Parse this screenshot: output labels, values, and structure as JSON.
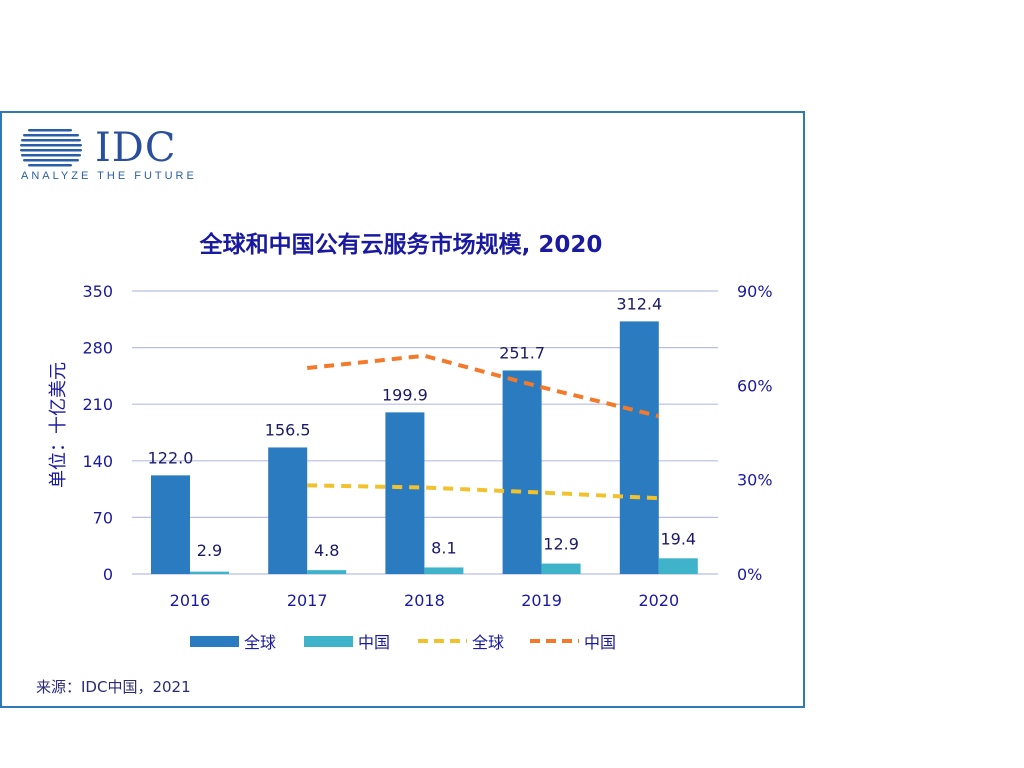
{
  "logo": {
    "name": "IDC",
    "tagline": "ANALYZE THE FUTURE",
    "colors": {
      "primary": "#2a4f9c",
      "accent": "#3a8fd6"
    }
  },
  "source": "来源：IDC中国，2021",
  "chart_data": {
    "type": "bar",
    "title": "全球和中国公有云服务市场规模, 2020",
    "ylabel": "单位：十亿美元",
    "categories": [
      "2016",
      "2017",
      "2018",
      "2019",
      "2020"
    ],
    "ylim": [
      0,
      350
    ],
    "yticks": [
      "0",
      "70",
      "140",
      "210",
      "280",
      "350"
    ],
    "y2lim": [
      0,
      90
    ],
    "y2ticks": [
      "0%",
      "30%",
      "60%",
      "90%"
    ],
    "series": [
      {
        "name": "全球",
        "kind": "bar",
        "color": "#2a7bbf",
        "values": [
          122.0,
          156.5,
          199.9,
          251.7,
          312.4
        ],
        "labels": [
          "122.0",
          "156.5",
          "199.9",
          "251.7",
          "312.4"
        ]
      },
      {
        "name": "中国",
        "kind": "bar",
        "color": "#3fb3c9",
        "values": [
          2.9,
          4.8,
          8.1,
          12.9,
          19.4
        ],
        "labels": [
          "2.9",
          "4.8",
          "8.1",
          "12.9",
          "19.4"
        ]
      },
      {
        "name": "全球",
        "kind": "dashed-line",
        "axis": "right",
        "color": "#f2c12e",
        "values": [
          null,
          28.2,
          27.5,
          25.9,
          24.1
        ]
      },
      {
        "name": "中国",
        "kind": "dashed-line",
        "axis": "right",
        "color": "#f27a2a",
        "values": [
          null,
          65.5,
          69.4,
          59.4,
          50.2
        ]
      }
    ],
    "grid": true,
    "legend": "bottom"
  }
}
